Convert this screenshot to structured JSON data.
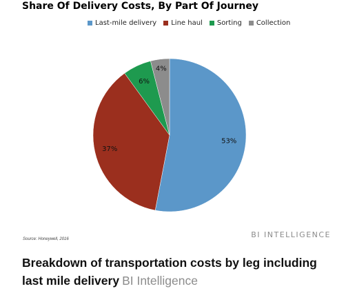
{
  "chart_data": {
    "type": "pie",
    "title": "Share Of Delivery Costs, By Part Of Journey",
    "legend_position": "top",
    "slices": [
      {
        "name": "Last-mile delivery",
        "value": 53,
        "label": "53%",
        "color": "#5b97c9"
      },
      {
        "name": "Line haul",
        "value": 37,
        "label": "37%",
        "color": "#9b2f1e"
      },
      {
        "name": "Sorting",
        "value": 6,
        "label": "6%",
        "color": "#1e9a4f"
      },
      {
        "name": "Collection",
        "value": 4,
        "label": "4%",
        "color": "#8c8c8c"
      }
    ]
  },
  "source_note": "Source: Honeywell, 2016",
  "watermark": "BI INTELLIGENCE",
  "caption": {
    "text": "Breakdown of transportation costs by leg including last mile delivery",
    "brand": "BI Intelligence"
  }
}
